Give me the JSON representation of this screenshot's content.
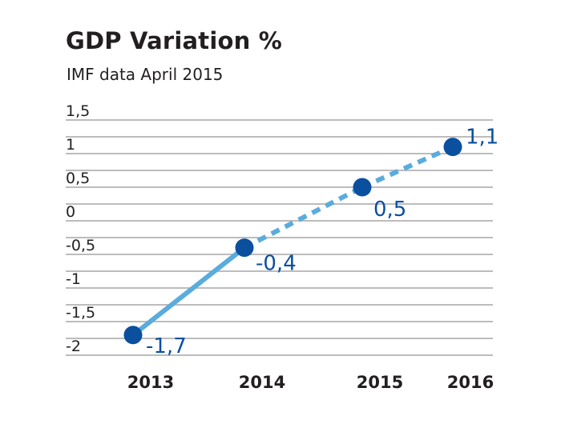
{
  "chart_data": {
    "type": "line",
    "title": "GDP Variation %",
    "subtitle": "IMF data April 2015",
    "xlabel": "",
    "ylabel": "",
    "categories": [
      "2013",
      "2014",
      "2015",
      "2016"
    ],
    "series": [
      {
        "values": [
          -1.7,
          -0.4,
          0.5,
          1.1
        ],
        "labels": [
          "-1,7",
          "-0,4",
          "0,5",
          "1,1"
        ],
        "line_styles": [
          "solid",
          "dashed",
          "dashed"
        ]
      }
    ],
    "ylim": [
      -2,
      1.5
    ],
    "yticks": [
      1.5,
      1,
      0.5,
      0,
      -0.5,
      -1,
      -1.5,
      -2
    ],
    "ytick_labels": [
      "1,5",
      "1",
      "0,5",
      "0",
      "-0,5",
      "-1",
      "-1,5",
      "-2"
    ],
    "grid": true,
    "colors": {
      "line": "#5aacdc",
      "marker": "#0b4f9f",
      "data_label": "#0b4f9f",
      "grid": "#bcbcbc",
      "text": "#231f20"
    }
  }
}
